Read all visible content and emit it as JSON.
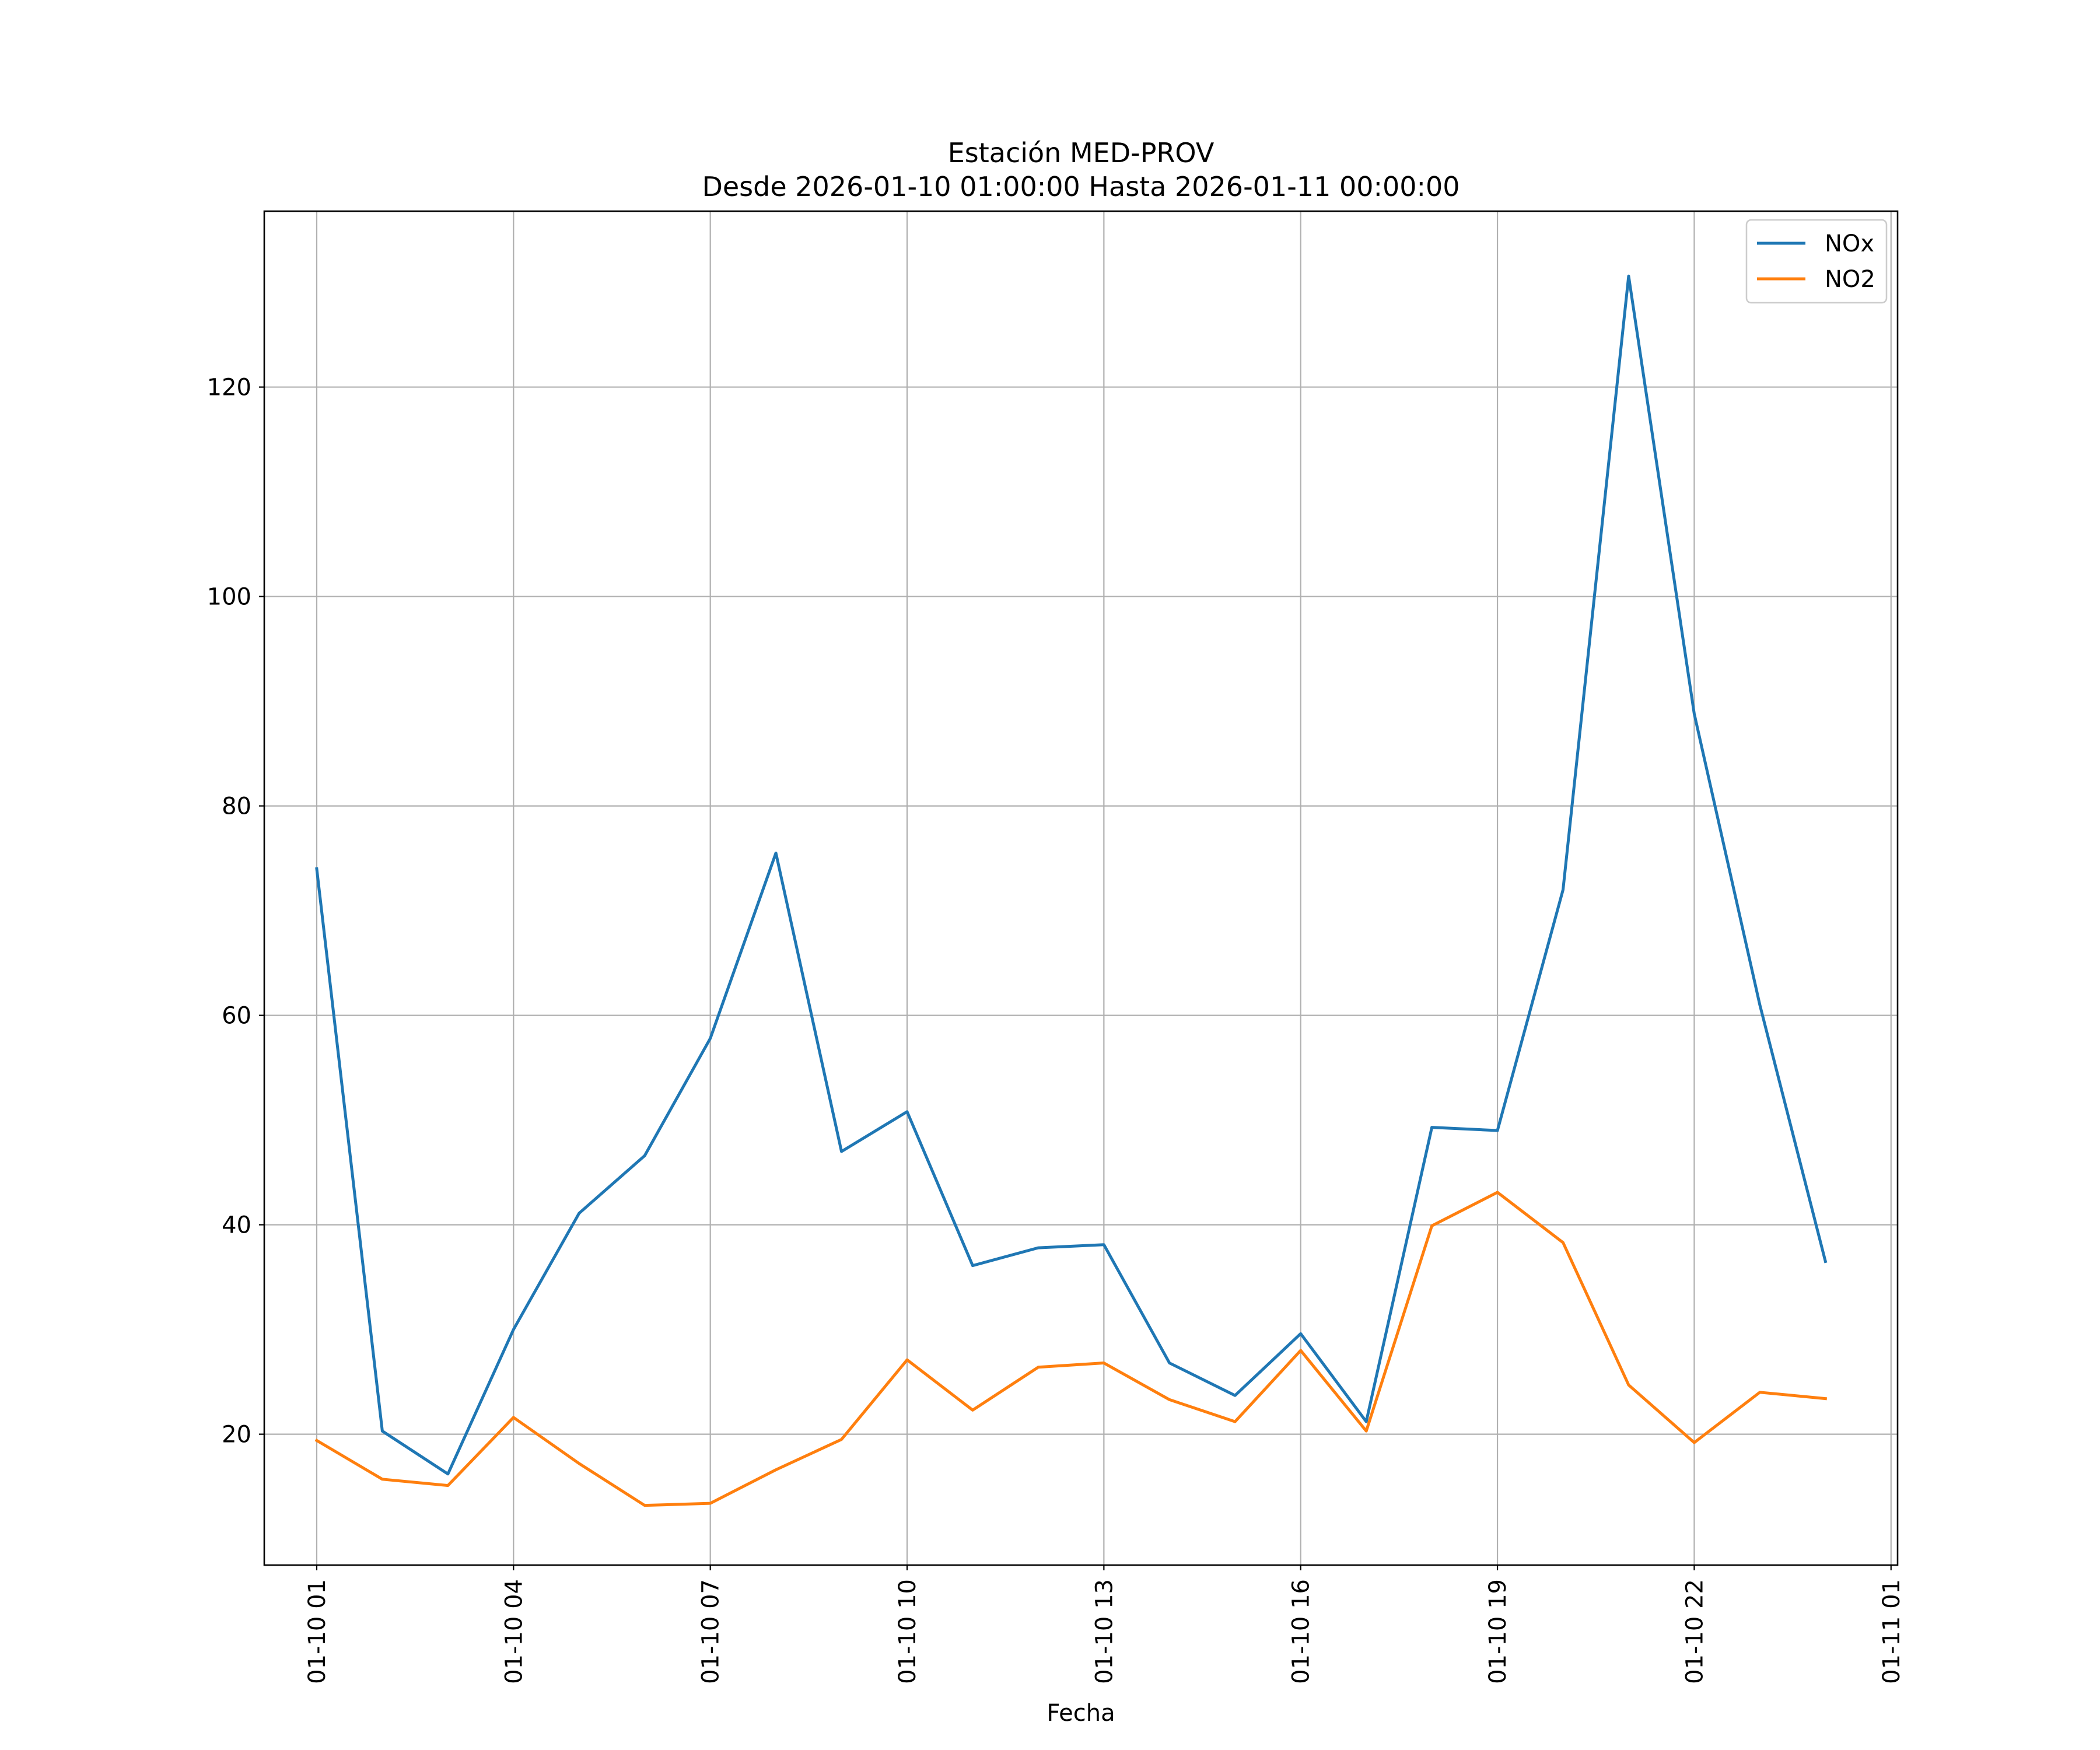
{
  "chart_data": {
    "type": "line",
    "title_lines": [
      "Estación MED-PROV",
      "Desde 2026-01-10 01:00:00 Hasta 2026-01-11 00:00:00"
    ],
    "xlabel": "Fecha",
    "ylabel": "",
    "x": [
      "01-10 01",
      "01-10 02",
      "01-10 03",
      "01-10 04",
      "01-10 05",
      "01-10 06",
      "01-10 07",
      "01-10 08",
      "01-10 09",
      "01-10 10",
      "01-10 11",
      "01-10 12",
      "01-10 13",
      "01-10 14",
      "01-10 15",
      "01-10 16",
      "01-10 17",
      "01-10 18",
      "01-10 19",
      "01-10 20",
      "01-10 21",
      "01-10 22",
      "01-10 23",
      "01-11 00"
    ],
    "xticks": [
      "01-10 01",
      "01-10 04",
      "01-10 07",
      "01-10 10",
      "01-10 13",
      "01-10 16",
      "01-10 19",
      "01-10 22",
      "01-11 01"
    ],
    "xlim": [
      "01-10 00:12",
      "01-11 01:06"
    ],
    "yticks": [
      20,
      40,
      60,
      80,
      100,
      120
    ],
    "ylim": [
      7.5,
      136.8
    ],
    "grid": true,
    "legend_position": "top-right",
    "series": [
      {
        "name": "NOx",
        "color": "#1f77b4",
        "values": [
          74.0,
          20.3,
          16.2,
          30.0,
          41.1,
          46.6,
          57.8,
          75.5,
          47.0,
          50.8,
          36.1,
          37.8,
          38.1,
          26.8,
          23.7,
          29.6,
          21.2,
          49.3,
          49.0,
          72.0,
          130.6,
          88.8,
          61.0,
          36.5
        ]
      },
      {
        "name": "NO2",
        "color": "#ff7f0e",
        "values": [
          19.4,
          15.7,
          15.1,
          21.6,
          17.2,
          13.2,
          13.4,
          16.6,
          19.5,
          27.1,
          22.3,
          26.4,
          26.8,
          23.3,
          21.2,
          28.0,
          20.3,
          39.9,
          43.1,
          38.3,
          24.7,
          19.2,
          24.0,
          23.4
        ]
      }
    ]
  }
}
